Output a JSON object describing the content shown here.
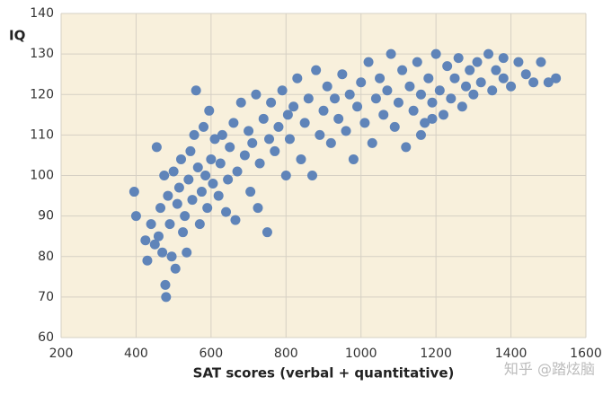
{
  "chart_data": {
    "type": "scatter",
    "y_label": "IQ",
    "x_label": "SAT scores (verbal + quantitative)",
    "watermark": "知乎 @踏炫脑",
    "color": "#5f84b9",
    "background": "#f8f0dc",
    "grid": true,
    "xlim": [
      200,
      1600
    ],
    "xticks": [
      200,
      400,
      600,
      800,
      1000,
      1200,
      1400,
      1600
    ],
    "ylim": [
      60,
      140
    ],
    "yticks": [
      60,
      70,
      80,
      90,
      100,
      110,
      120,
      130,
      140
    ],
    "x": [
      395,
      400,
      425,
      430,
      440,
      450,
      455,
      460,
      465,
      470,
      475,
      478,
      480,
      485,
      490,
      495,
      500,
      505,
      510,
      515,
      520,
      525,
      530,
      535,
      540,
      545,
      550,
      555,
      560,
      565,
      570,
      575,
      580,
      585,
      590,
      595,
      600,
      605,
      610,
      620,
      625,
      630,
      640,
      645,
      650,
      660,
      665,
      670,
      680,
      690,
      700,
      705,
      710,
      720,
      725,
      730,
      740,
      750,
      755,
      760,
      770,
      780,
      790,
      800,
      805,
      810,
      820,
      830,
      840,
      850,
      860,
      870,
      880,
      890,
      900,
      910,
      920,
      930,
      940,
      950,
      960,
      970,
      980,
      990,
      1000,
      1010,
      1020,
      1030,
      1040,
      1050,
      1060,
      1070,
      1080,
      1090,
      1100,
      1110,
      1120,
      1130,
      1140,
      1150,
      1160,
      1170,
      1180,
      1190,
      1200,
      1210,
      1220,
      1230,
      1240,
      1250,
      1260,
      1270,
      1280,
      1290,
      1300,
      1310,
      1320,
      1340,
      1350,
      1360,
      1380,
      1400,
      1420,
      1440,
      1460,
      1480,
      1500,
      1520,
      1380,
      1160,
      1190
    ],
    "values": [
      96,
      90,
      84,
      79,
      88,
      83,
      107,
      85,
      92,
      81,
      100,
      73,
      70,
      95,
      88,
      80,
      101,
      77,
      93,
      97,
      104,
      86,
      90,
      81,
      99,
      106,
      94,
      110,
      121,
      102,
      88,
      96,
      112,
      100,
      92,
      116,
      104,
      98,
      109,
      95,
      103,
      110,
      91,
      99,
      107,
      113,
      89,
      101,
      118,
      105,
      111,
      96,
      108,
      120,
      92,
      103,
      114,
      86,
      109,
      118,
      106,
      112,
      121,
      100,
      115,
      109,
      117,
      124,
      104,
      113,
      119,
      100,
      126,
      110,
      116,
      122,
      108,
      119,
      114,
      125,
      111,
      120,
      104,
      117,
      123,
      113,
      128,
      108,
      119,
      124,
      115,
      121,
      130,
      112,
      118,
      126,
      107,
      122,
      116,
      128,
      120,
      113,
      124,
      118,
      130,
      121,
      115,
      127,
      119,
      124,
      129,
      117,
      122,
      126,
      120,
      128,
      123,
      130,
      121,
      126,
      124,
      122,
      128,
      125,
      123,
      128,
      123,
      124,
      129,
      110,
      114
    ]
  }
}
